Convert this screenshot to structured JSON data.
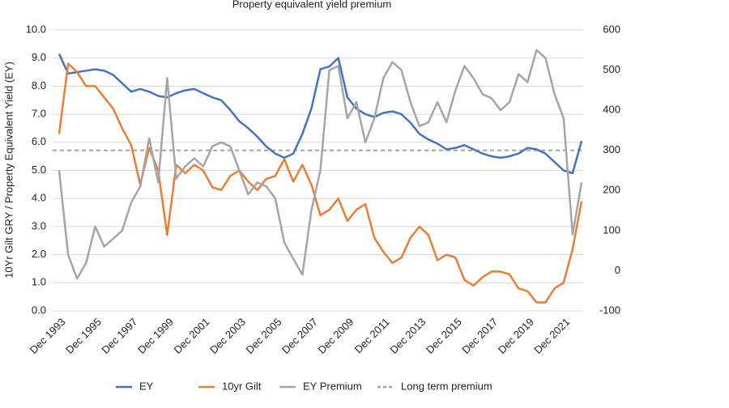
{
  "chart_data": {
    "type": "line",
    "title": "Property equivalent yield premium",
    "y_label": "10Yr Gilt GRY / Property Equivalent Yield (EY)",
    "categories": [
      "Dec 1993",
      null,
      null,
      null,
      "Dec 1995",
      null,
      null,
      null,
      "Dec 1997",
      null,
      null,
      null,
      "Dec 1999",
      null,
      null,
      null,
      "Dec 2001",
      null,
      null,
      null,
      "Dec 2003",
      null,
      null,
      null,
      "Dec 2005",
      null,
      null,
      null,
      "Dec 2007",
      null,
      null,
      null,
      "Dec 2009",
      null,
      null,
      null,
      "Dec 2011",
      null,
      null,
      null,
      "Dec 2013",
      null,
      null,
      null,
      "Dec 2015",
      null,
      null,
      null,
      "Dec 2017",
      null,
      null,
      null,
      "Dec 2019",
      null,
      null,
      null,
      "Dec 2021",
      null,
      null
    ],
    "series": [
      {
        "name": "EY",
        "color": "#4472c4",
        "values": [
          9.15,
          8.45,
          8.5,
          8.55,
          8.6,
          8.55,
          8.4,
          8.1,
          7.8,
          7.9,
          7.8,
          7.65,
          7.6,
          7.75,
          7.85,
          7.9,
          7.75,
          7.6,
          7.5,
          7.15,
          6.75,
          6.5,
          6.2,
          5.85,
          5.6,
          5.45,
          5.6,
          6.3,
          7.2,
          8.6,
          8.7,
          9.0,
          7.6,
          7.2,
          7.0,
          6.9,
          7.05,
          7.1,
          7.0,
          6.7,
          6.3,
          6.1,
          5.95,
          5.75,
          5.8,
          5.9,
          5.75,
          5.6,
          5.5,
          5.45,
          5.5,
          5.6,
          5.8,
          5.75,
          5.6,
          5.3,
          5.0,
          4.9,
          6.05
        ]
      },
      {
        "name": "10yr Gilt",
        "color": "#ed7d31",
        "values": [
          6.3,
          8.8,
          8.5,
          8.0,
          8.0,
          7.6,
          7.2,
          6.5,
          5.9,
          4.5,
          5.8,
          5.0,
          2.7,
          5.2,
          4.9,
          5.2,
          5.0,
          4.4,
          4.3,
          4.8,
          5.0,
          4.6,
          4.3,
          4.7,
          4.8,
          5.4,
          4.6,
          5.2,
          4.5,
          3.4,
          3.6,
          4.0,
          3.2,
          3.6,
          3.8,
          2.6,
          2.1,
          1.7,
          1.9,
          2.6,
          3.0,
          2.7,
          1.8,
          2.0,
          1.9,
          1.1,
          0.9,
          1.2,
          1.4,
          1.4,
          1.3,
          0.8,
          0.7,
          0.3,
          0.3,
          0.8,
          1.0,
          2.2,
          3.9
        ]
      },
      {
        "name": "EY Premium",
        "color": "#a5a5a5",
        "axis": "y2",
        "values": [
          250,
          40,
          -20,
          20,
          110,
          60,
          80,
          100,
          170,
          210,
          330,
          220,
          480,
          230,
          260,
          280,
          260,
          310,
          320,
          310,
          250,
          190,
          220,
          210,
          180,
          70,
          30,
          -10,
          150,
          250,
          500,
          510,
          380,
          420,
          320,
          380,
          480,
          520,
          500,
          420,
          360,
          370,
          420,
          370,
          450,
          510,
          480,
          440,
          430,
          400,
          420,
          490,
          470,
          550,
          530,
          440,
          380,
          90,
          220
        ]
      }
    ],
    "reference_lines": [
      {
        "name": "Long term premium",
        "value": 300,
        "axis": "y2",
        "color": "#a5a5a5",
        "dashed": true
      }
    ],
    "ylim": [
      0,
      10
    ],
    "yticks": [
      {
        "value": 0,
        "label": "0.0"
      },
      {
        "value": 1,
        "label": "1.0"
      },
      {
        "value": 2,
        "label": "2.0"
      },
      {
        "value": 3,
        "label": "3.0"
      },
      {
        "value": 4,
        "label": "4.0"
      },
      {
        "value": 5,
        "label": "5.0"
      },
      {
        "value": 6,
        "label": "6.0"
      },
      {
        "value": 7,
        "label": "7.0"
      },
      {
        "value": 8,
        "label": "8.0"
      },
      {
        "value": 9,
        "label": "9.0"
      },
      {
        "value": 10,
        "label": "10.0"
      }
    ],
    "y2lim": [
      -100,
      600
    ],
    "y2ticks": [
      -100,
      0,
      100,
      200,
      300,
      400,
      500,
      600
    ],
    "grid": true,
    "legend": "bottom"
  }
}
